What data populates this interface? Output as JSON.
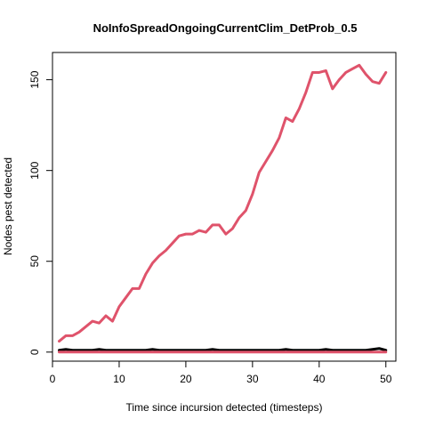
{
  "chart_data": {
    "type": "line",
    "title": "NoInfoSpreadOngoingCurrentClim_DetProb_0.5",
    "xlabel": "Time since incursion detected (timesteps)",
    "ylabel": "Nodes pest detected",
    "xlim": [
      0,
      51.5
    ],
    "ylim": [
      -5,
      165
    ],
    "x_ticks": [
      0,
      10,
      20,
      30,
      40,
      50
    ],
    "y_ticks": [
      0,
      50,
      100,
      150
    ],
    "grid": false,
    "legend": "none",
    "x": [
      1,
      2,
      3,
      4,
      5,
      6,
      7,
      8,
      9,
      10,
      11,
      12,
      13,
      14,
      15,
      16,
      17,
      18,
      19,
      20,
      21,
      22,
      23,
      24,
      25,
      26,
      27,
      28,
      29,
      30,
      31,
      32,
      33,
      34,
      35,
      36,
      37,
      38,
      39,
      40,
      41,
      42,
      43,
      44,
      45,
      46,
      47,
      48,
      49,
      50
    ],
    "series": [
      {
        "color": "#DF536B",
        "values": [
          6,
          9,
          9,
          11,
          14,
          17,
          16,
          20,
          17,
          25,
          30,
          35,
          35,
          43,
          49,
          53,
          56,
          60,
          64,
          65,
          65,
          67,
          66,
          70,
          70,
          65,
          68,
          74,
          78,
          87,
          99,
          105,
          111,
          118,
          129,
          127,
          134,
          143,
          154,
          154,
          155,
          145,
          150,
          154,
          156,
          158,
          153,
          149,
          148,
          154
        ]
      },
      {
        "color": "#000000",
        "values": [
          1,
          1.5,
          1,
          1,
          1,
          1,
          1.5,
          1,
          1,
          1,
          1,
          1,
          1,
          1,
          1.5,
          1,
          1,
          1,
          1,
          1,
          1,
          1,
          1,
          1.5,
          1,
          1,
          1,
          1,
          1,
          1,
          1,
          1,
          1,
          1,
          1.5,
          1,
          1,
          1,
          1,
          1,
          1.5,
          1,
          1,
          1,
          1,
          1,
          1,
          1.5,
          2,
          1
        ]
      },
      {
        "color": "#DF536B",
        "values": [
          0,
          0,
          0,
          0,
          0,
          0,
          0,
          0,
          0,
          0,
          0,
          0,
          0,
          0,
          0,
          0,
          0,
          0,
          0,
          0,
          0,
          0,
          0,
          0,
          0,
          0,
          0,
          0,
          0,
          0,
          0,
          0,
          0,
          0,
          0,
          0,
          0,
          0,
          0,
          0,
          0,
          0,
          0,
          0,
          0,
          0,
          0,
          0,
          0,
          0
        ]
      }
    ]
  }
}
